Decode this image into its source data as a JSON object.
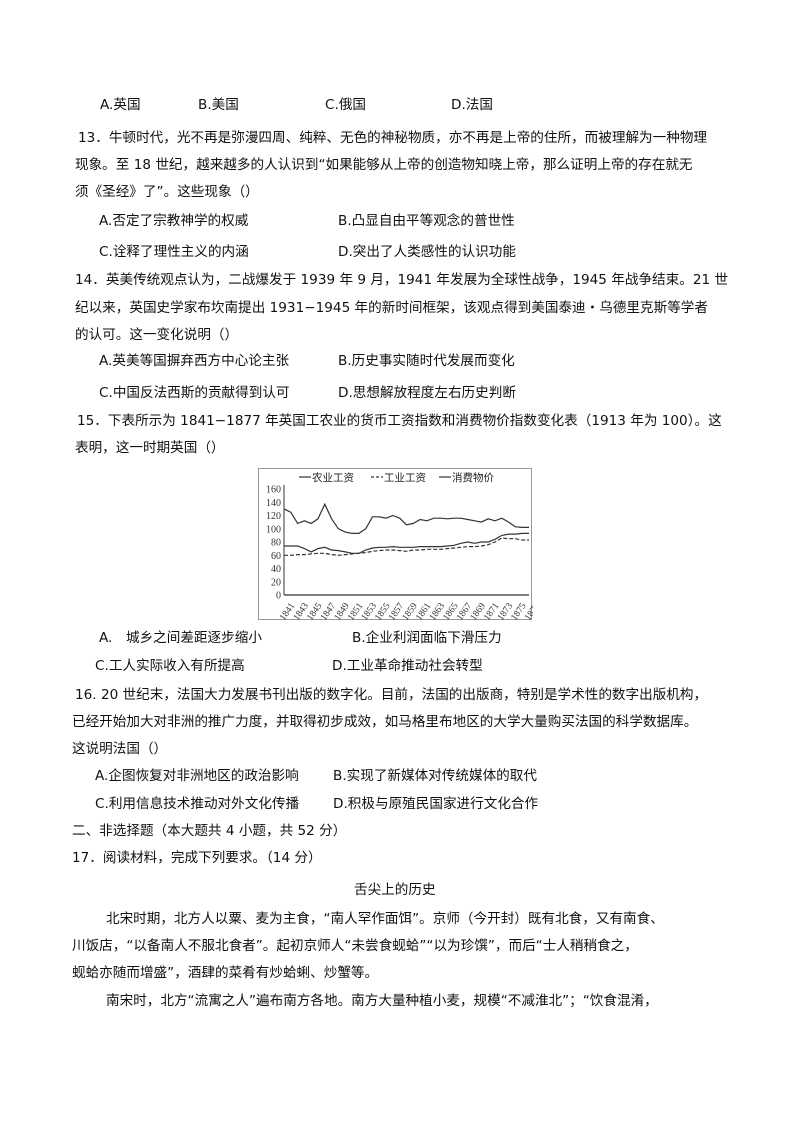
{
  "q12": {
    "options": [
      "A.英国",
      "B.美国",
      "C.俄国",
      "D.法国"
    ]
  },
  "q13": {
    "lines": [
      "13．牛顿时代，光不再是弥漫四周、纯粹、无色的神秘物质，亦不再是上帝的住所，而被理解为一种物理",
      "现象。至 18 世纪，越来越多的人认识到“如果能够从上帝的创造物知晓上帝，那么证明上帝的存在就无",
      "须《圣经》了”。这些现象（）"
    ],
    "options": [
      "A.否定了宗教神学的权威",
      "B.凸显自由平等观念的普世性",
      "C.诠释了理性主义的内涵",
      "D.突出了人类感性的认识功能"
    ]
  },
  "q14": {
    "lines": [
      "14．英美传统观点认为，二战爆发于 1939 年 9 月，1941 年发展为全球性战争，1945 年战争结束。21 世",
      "纪以来，英国史学家布坎南提出 1931−1945 年的新时间框架，该观点得到美国泰迪・乌德里克斯等学者",
      "的认可。这一变化说明（）"
    ],
    "options": [
      "A.英美等国摒弃西方中心论主张",
      "B.历史事实随时代发展而变化",
      "C.中国反法西斯的贡献得到认可",
      "D.思想解放程度左右历史判断"
    ]
  },
  "q15": {
    "lines": [
      "15．下表所示为 1841−1877 年英国工农业的货币工资指数和消费物价指数变化表（1913 年为 100）。这",
      "表明，这一时期英国（）"
    ],
    "options": [
      "A.　城乡之间差距逐步缩小",
      "B.企业利润面临下滑压力",
      "C.工人实际收入有所提高",
      "D.工业革命推动社会转型"
    ]
  },
  "chart_data": {
    "type": "line",
    "title": "",
    "xlabel": "",
    "ylabel": "",
    "ylim": [
      0,
      160
    ],
    "yticks": [
      "0",
      "20",
      "40",
      "60",
      "80",
      "100",
      "120",
      "140",
      "160"
    ],
    "xlim": [
      1841,
      1877
    ],
    "xticks": [
      "1841",
      "1843",
      "1845",
      "1847",
      "1849",
      "1851",
      "1853",
      "1855",
      "1857",
      "1859",
      "1861",
      "1863",
      "1865",
      "1867",
      "1869",
      "1871",
      "1873",
      "1875",
      "1877"
    ],
    "grid": false,
    "legend": "top",
    "x": [
      1841,
      1842,
      1843,
      1844,
      1845,
      1846,
      1847,
      1848,
      1849,
      1850,
      1851,
      1852,
      1853,
      1854,
      1855,
      1856,
      1857,
      1858,
      1859,
      1860,
      1861,
      1862,
      1863,
      1864,
      1865,
      1866,
      1867,
      1868,
      1869,
      1870,
      1871,
      1872,
      1873,
      1874,
      1875,
      1876,
      1877
    ],
    "series": [
      {
        "name": "农业工资",
        "style": "solid",
        "values": [
          74,
          74,
          74,
          70,
          65,
          70,
          72,
          68,
          67,
          65,
          63,
          63,
          68,
          71,
          72,
          72,
          73,
          72,
          72,
          72,
          73,
          73,
          73,
          73,
          74,
          75,
          78,
          80,
          78,
          80,
          80,
          84,
          90,
          92,
          92,
          93,
          93
        ]
      },
      {
        "name": "工业工资",
        "style": "dashed",
        "values": [
          60,
          60,
          61,
          61,
          62,
          63,
          63,
          61,
          60,
          61,
          62,
          63,
          64,
          66,
          67,
          68,
          68,
          67,
          66,
          68,
          68,
          69,
          69,
          69,
          70,
          71,
          72,
          73,
          73,
          74,
          76,
          80,
          86,
          85,
          85,
          83,
          83
        ]
      },
      {
        "name": "消费物价",
        "style": "solid",
        "values": [
          130,
          125,
          108,
          112,
          108,
          115,
          137,
          115,
          100,
          95,
          93,
          93,
          100,
          118,
          118,
          116,
          120,
          116,
          106,
          108,
          114,
          112,
          116,
          116,
          115,
          116,
          116,
          114,
          112,
          110,
          115,
          112,
          116,
          110,
          103,
          102,
          102
        ]
      }
    ]
  },
  "q16": {
    "lines": [
      "16. 20 世纪末，法国大力发展书刊出版的数字化。目前，法国的出版商，特别是学术性的数字出版机构，",
      "已经开始加大对非洲的推广力度，并取得初步成效，如马格里布地区的大学大量购买法国的科学数据库。",
      "这说明法国（）"
    ],
    "options": [
      "A.企图恢复对非洲地区的政治影响",
      "B.实现了新媒体对传统媒体的取代",
      "C.利用信息技术推动对外文化传播",
      "D.积极与原殖民国家进行文化合作"
    ]
  },
  "section2": "二、非选择题（本大题共 4 小题，共 52 分）",
  "q17": {
    "stem": "17．阅读材料，完成下列要求。（14 分）",
    "title": "舌尖上的历史",
    "lines": [
      "北宋时期，北方人以粟、麦为主食，“南人罕作面饵”。京师（今开封）既有北食，又有南食、",
      "川饭店，“以备南人不服北食者”。起初京师人“未尝食蚬蛤”“以为珍馔”，而后“士人稍稍食之，",
      "蚬蛤亦随而增盛”，酒肆的菜肴有炒蛤蜊、炒蟹等。",
      "南宋时，北方“流寓之人”遍布南方各地。南方大量种植小麦，规模“不减淮北”；“饮食混淆，"
    ]
  }
}
